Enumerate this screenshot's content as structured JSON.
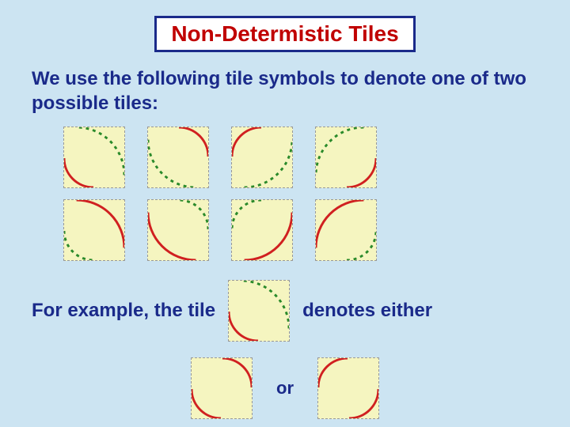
{
  "title": "Non-Determistic Tiles",
  "intro": "We use the following tile symbols to denote one of two possible tiles:",
  "example_prefix": "For example, the tile",
  "example_suffix": "denotes either",
  "or_text": "or",
  "colors": {
    "page_bg": "#cce4f2",
    "tile_bg": "#f5f5c0",
    "tile_border": "#999999",
    "title_border": "#1a2a8a",
    "title_text": "#c00000",
    "body_text": "#1a2a8a",
    "solid_arc": "#d02020",
    "dashed_arc": "#2a8a2a"
  },
  "arc_stroke_width": 3,
  "arc_radius_outer": 62,
  "arc_radius_inner": 38,
  "tile_size": 78,
  "tiles_row1": [
    {
      "solid": {
        "corner": "BL",
        "r": "inner"
      },
      "dashed": {
        "corner": "TR",
        "r": "outer"
      }
    },
    {
      "solid": {
        "corner": "TR",
        "r": "inner"
      },
      "dashed": {
        "corner": "BL",
        "r": "outer"
      }
    },
    {
      "solid": {
        "corner": "TL",
        "r": "inner"
      },
      "dashed": {
        "corner": "BR",
        "r": "outer"
      }
    },
    {
      "solid": {
        "corner": "BR",
        "r": "inner"
      },
      "dashed": {
        "corner": "TL",
        "r": "outer"
      }
    }
  ],
  "tiles_row2": [
    {
      "solid": {
        "corner": "TR",
        "r": "outer"
      },
      "dashed": {
        "corner": "BL",
        "r": "inner"
      }
    },
    {
      "solid": {
        "corner": "BL",
        "r": "outer"
      },
      "dashed": {
        "corner": "TR",
        "r": "inner"
      }
    },
    {
      "solid": {
        "corner": "BR",
        "r": "outer"
      },
      "dashed": {
        "corner": "TL",
        "r": "inner"
      }
    },
    {
      "solid": {
        "corner": "TL",
        "r": "outer"
      },
      "dashed": {
        "corner": "BR",
        "r": "inner"
      }
    }
  ],
  "example_tile": {
    "solid": {
      "corner": "BL",
      "r": "inner"
    },
    "dashed": {
      "corner": "TR",
      "r": "outer"
    }
  },
  "either_tile_a": {
    "solid": {
      "corner": "BL",
      "r": "inner"
    },
    "solid2": {
      "corner": "TR",
      "r": "inner"
    }
  },
  "either_tile_b": {
    "solid": {
      "corner": "TL",
      "r": "inner"
    },
    "solid2": {
      "corner": "BR",
      "r": "inner"
    }
  }
}
